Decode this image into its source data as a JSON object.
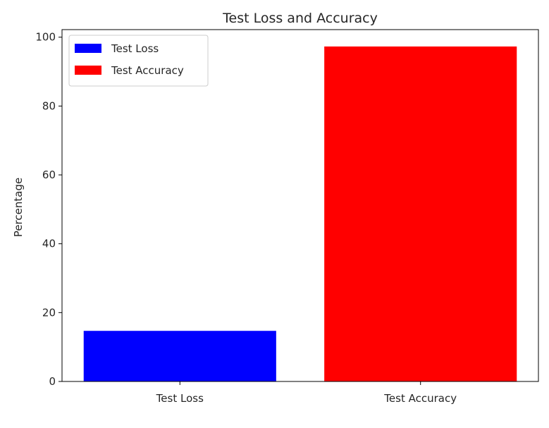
{
  "chart_data": {
    "type": "bar",
    "title": "Test Loss and Accuracy",
    "xlabel": "",
    "ylabel": "Percentage",
    "categories": [
      "Test Loss",
      "Test Accuracy"
    ],
    "values": [
      14.7,
      97.3
    ],
    "colors": [
      "#0000ff",
      "#ff0000"
    ],
    "ylim": [
      0,
      102.2
    ],
    "yticks": [
      0,
      20,
      40,
      60,
      80,
      100
    ],
    "grid": false,
    "legend": {
      "placement": "top-left",
      "entries": [
        {
          "label": "Test Loss",
          "color": "#0000ff"
        },
        {
          "label": "Test Accuracy",
          "color": "#ff0000"
        }
      ]
    }
  }
}
